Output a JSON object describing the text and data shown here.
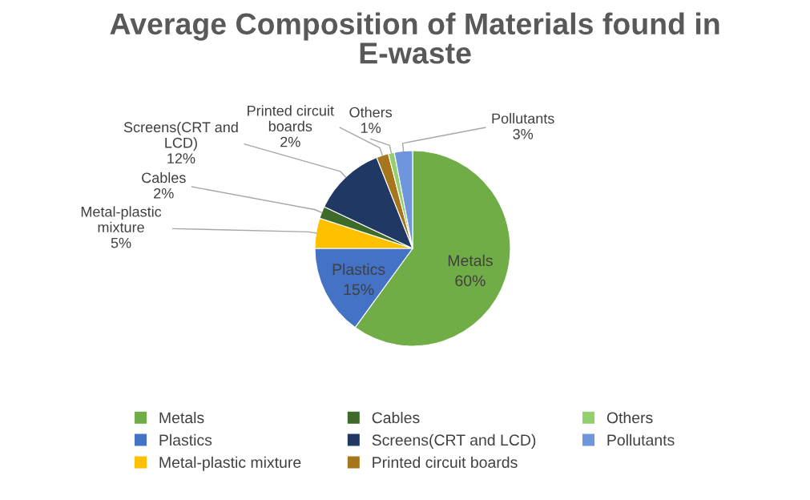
{
  "chart_data": {
    "type": "pie",
    "title": "Average Composition of Materials found in E-waste",
    "categories": [
      "Metals",
      "Plastics",
      "Metal-plastic mixture",
      "Cables",
      "Screens(CRT and LCD)",
      "Printed circuit boards",
      "Others",
      "Pollutants"
    ],
    "values": [
      60,
      15,
      5,
      2,
      12,
      2,
      1,
      3
    ],
    "value_labels": [
      "60%",
      "15%",
      "5%",
      "2%",
      "12%",
      "2%",
      "1%",
      "3%"
    ],
    "colors": [
      "#70ad47",
      "#4472c4",
      "#ffc000",
      "#3f6b2a",
      "#203864",
      "#a6761d",
      "#94cf6e",
      "#6f95dc"
    ],
    "legend": "bottom"
  }
}
